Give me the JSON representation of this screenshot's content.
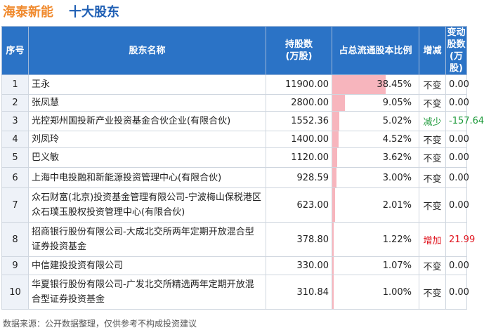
{
  "title": {
    "company": "海泰新能",
    "subtitle": "十大股东"
  },
  "table": {
    "headers": {
      "rank": "序号",
      "name": "股东名称",
      "shares": "持股数\n(万股)",
      "pct": "占总流通股本比例",
      "change": "增减",
      "delta": "变动股数\n(万股)"
    },
    "rows": [
      {
        "rank": "1",
        "name": "王永",
        "shares": "11900.00",
        "pct_value": 38.45,
        "pct": "38.45%",
        "change": "不变",
        "change_type": "flat",
        "delta": "0.00"
      },
      {
        "rank": "2",
        "name": "张凤慧",
        "shares": "2800.00",
        "pct_value": 9.05,
        "pct": "9.05%",
        "change": "不变",
        "change_type": "flat",
        "delta": "0.00"
      },
      {
        "rank": "3",
        "name": "光控郑州国投新产业投资基金合伙企业(有限合伙)",
        "shares": "1552.36",
        "pct_value": 5.02,
        "pct": "5.02%",
        "change": "减少",
        "change_type": "down",
        "delta": "-157.64"
      },
      {
        "rank": "4",
        "name": "刘凤玲",
        "shares": "1400.00",
        "pct_value": 4.52,
        "pct": "4.52%",
        "change": "不变",
        "change_type": "flat",
        "delta": "0.00"
      },
      {
        "rank": "5",
        "name": "巴义敏",
        "shares": "1120.00",
        "pct_value": 3.62,
        "pct": "3.62%",
        "change": "不变",
        "change_type": "flat",
        "delta": "0.00"
      },
      {
        "rank": "6",
        "name": "上海中电投融和新能源投资管理中心(有限合伙)",
        "shares": "928.59",
        "pct_value": 3.0,
        "pct": "3.00%",
        "change": "不变",
        "change_type": "flat",
        "delta": "0.00"
      },
      {
        "rank": "7",
        "name": "众石财富(北京)投资基金管理有限公司-宁波梅山保税港区众石璞玉股权投资管理中心(有限合伙)",
        "shares": "623.00",
        "pct_value": 2.01,
        "pct": "2.01%",
        "change": "不变",
        "change_type": "flat",
        "delta": "0.00"
      },
      {
        "rank": "8",
        "name": "招商银行股份有限公司-大成北交所两年定期开放混合型证券投资基金",
        "shares": "378.80",
        "pct_value": 1.22,
        "pct": "1.22%",
        "change": "增加",
        "change_type": "up",
        "delta": "21.99"
      },
      {
        "rank": "9",
        "name": "中信建投投资有限公司",
        "shares": "330.00",
        "pct_value": 1.07,
        "pct": "1.07%",
        "change": "不变",
        "change_type": "flat",
        "delta": "0.00"
      },
      {
        "rank": "10",
        "name": "华夏银行股份有限公司-广发北交所精选两年定期开放混合型证券投资基金",
        "shares": "310.84",
        "pct_value": 1.0,
        "pct": "1.00%",
        "change": "不变",
        "change_type": "flat",
        "delta": "0.00"
      }
    ]
  },
  "source": "数据来源：公开数据整理，仅供参考不构成投资建议",
  "colors": {
    "title_company": "#f08a2e",
    "title_subtitle": "#1f5fb4",
    "header_bg": "#2b73c6",
    "bar": "#f7b5bd",
    "increase": "#e0151f",
    "decrease": "#1d9a3a"
  }
}
